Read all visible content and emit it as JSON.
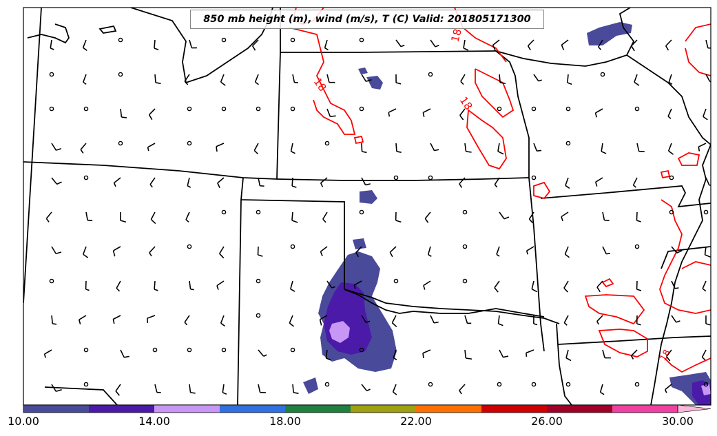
{
  "map": {
    "title": "850 mb height (m), wind (m/s), T (C) Valid: 201805171300",
    "temperature_contour_label": "18",
    "temperature_contour_color": "#ff0000",
    "wind_barb_color": "#000000",
    "border_color": "#000000"
  },
  "colorbar": {
    "colors": [
      "#4a4a9a",
      "#4b1aa8",
      "#c896f5",
      "#3070e0",
      "#208040",
      "#a0a010",
      "#ff7000",
      "#d00000",
      "#a00028",
      "#f040a0"
    ],
    "extend_color": "#f8b8d8",
    "tick_labels": [
      "10.00",
      "14.00",
      "18.00",
      "22.00",
      "26.00",
      "30.00"
    ]
  }
}
